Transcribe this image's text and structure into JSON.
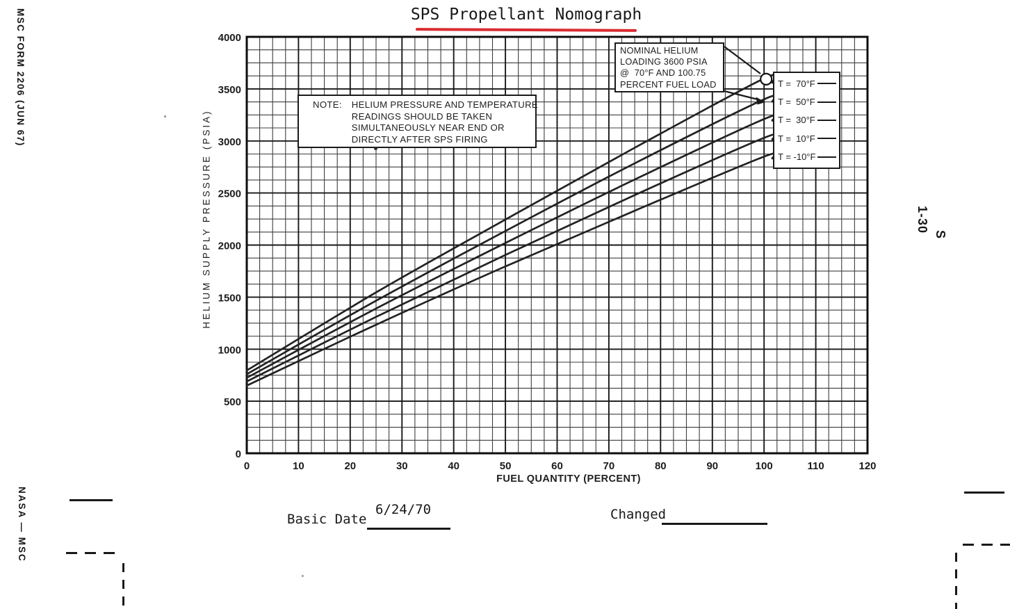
{
  "page": {
    "margins": {
      "left_top_vertical": "MSC FORM 2206 (JUN 67)",
      "left_bottom_vertical": "NASA — MSC",
      "right_vertical_line1": "S",
      "right_vertical_line2": "1-30"
    },
    "footer": {
      "basic_date_label": "Basic Date",
      "basic_date_value": "6/24/70",
      "changed_label": "Changed"
    }
  },
  "chart_data": {
    "type": "line",
    "title": "SPS Propellant Nomograph",
    "xlabel": "FUEL QUANTITY (PERCENT)",
    "ylabel": "HELIUM SUPPLY PRESSURE (PSIA)",
    "xlim": [
      0,
      120
    ],
    "ylim": [
      0,
      4000
    ],
    "x_major_ticks": [
      0,
      10,
      20,
      30,
      40,
      50,
      60,
      70,
      80,
      90,
      100,
      110,
      120
    ],
    "y_major_ticks": [
      0,
      500,
      1000,
      1500,
      2000,
      2500,
      3000,
      3500,
      4000
    ],
    "x_minor_step": 2.5,
    "y_minor_step": 125,
    "grid": "minor and major grid on",
    "legend_position": "upper right",
    "note": {
      "label": "NOTE:",
      "text": "HELIUM PRESSURE AND TEMPERATURE\nREADINGS SHOULD BE TAKEN\nSIMULTANEOUSLY NEAR END OR\nDIRECTLY AFTER SPS FIRING"
    },
    "annotation": {
      "text": "NOMINAL HELIUM\nLOADING 3600 PSIA\n@  70°F AND 100.75\nPERCENT FUEL LOAD",
      "points_to": {
        "fuel_percent": 100.75,
        "pressure_psia": 3600
      }
    },
    "marker": {
      "name": "nominal-loading-point",
      "x": 100,
      "y": 3600
    },
    "x": [
      0,
      25,
      50,
      75,
      100
    ],
    "series": [
      {
        "name": "T =  70°F",
        "values": [
          795,
          1545,
          2245,
          2935,
          3600
        ]
      },
      {
        "name": "T =  50°F",
        "values": [
          760,
          1465,
          2135,
          2785,
          3400
        ]
      },
      {
        "name": "T =  30°F",
        "values": [
          725,
          1390,
          2020,
          2630,
          3210
        ]
      },
      {
        "name": "T =  10°F",
        "values": [
          690,
          1310,
          1905,
          2480,
          3030
        ]
      },
      {
        "name": "T = -10°F",
        "values": [
          650,
          1235,
          1795,
          2330,
          2850
        ]
      }
    ],
    "colors": {
      "ink": "#1e1e1e",
      "accent_red": "#d92b31",
      "paper": "#ffffff"
    }
  }
}
